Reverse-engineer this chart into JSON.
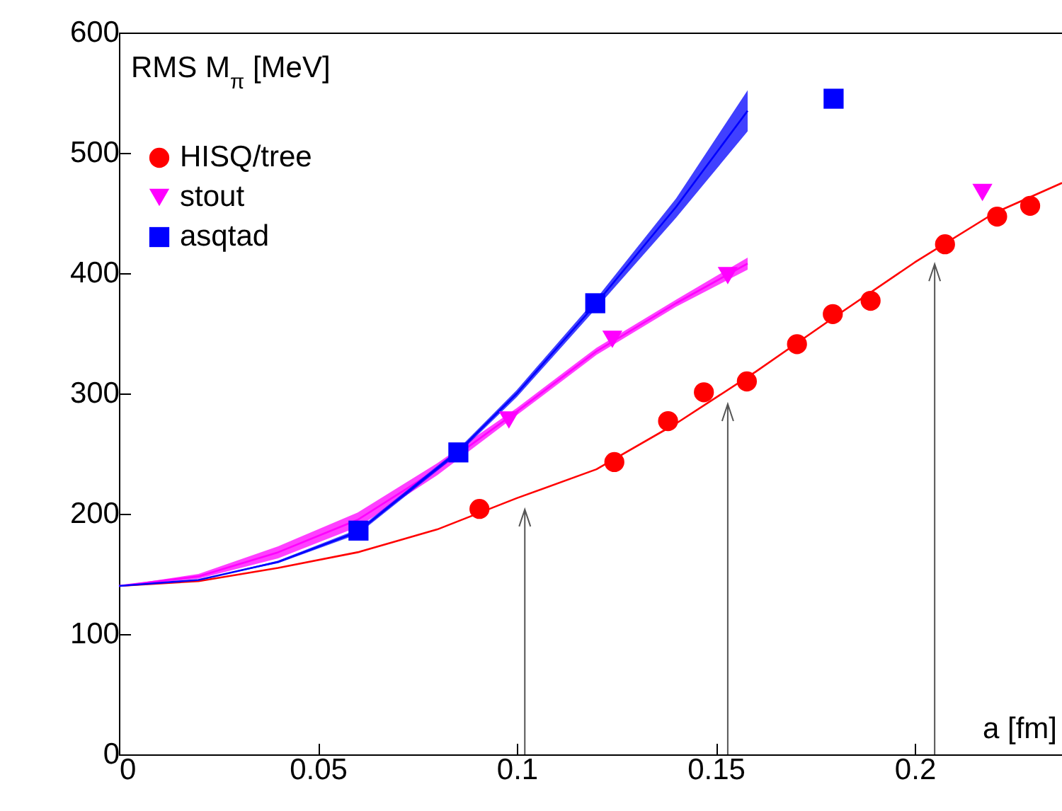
{
  "chart_data": {
    "type": "scatter",
    "xlabel": "a [fm]",
    "ylabel": "RMS M$_{π}$ [MeV]",
    "xlim": [
      0,
      0.237
    ],
    "ylim": [
      0,
      600
    ],
    "xticks": [
      0,
      0.05,
      0.1,
      0.15,
      0.2
    ],
    "yticks": [
      0,
      100,
      200,
      300,
      400,
      500,
      600
    ],
    "grid": false,
    "legend": "top left",
    "series": [
      {
        "type": "line",
        "color": "#ff0000",
        "marker": "none",
        "line_style": "solid",
        "x": [
          0,
          0.02,
          0.04,
          0.06,
          0.08,
          0.1,
          0.12,
          0.14,
          0.16,
          0.18,
          0.2,
          0.22,
          0.237
        ],
        "values": [
          140,
          144,
          155,
          168,
          187,
          213,
          237,
          275,
          318,
          364,
          409,
          450,
          475
        ]
      },
      {
        "type": "line",
        "color": "#ff00ff",
        "marker": "none",
        "line_style": "solid",
        "x": [
          0,
          0.02,
          0.04,
          0.06,
          0.08,
          0.1,
          0.12,
          0.14,
          0.158
        ],
        "values": [
          140,
          148,
          168,
          195,
          237,
          285,
          335,
          375,
          408
        ],
        "lower": [
          140,
          146,
          163,
          189,
          232,
          282,
          332,
          372,
          403
        ],
        "upper": [
          140,
          150,
          173,
          201,
          242,
          288,
          338,
          378,
          413
        ]
      },
      {
        "type": "line",
        "color": "#0000ff",
        "marker": "none",
        "line_style": "solid",
        "x": [
          0,
          0.02,
          0.04,
          0.06,
          0.085,
          0.1,
          0.12,
          0.14,
          0.158
        ],
        "values": [
          140,
          145,
          160,
          185,
          251,
          300,
          375,
          455,
          535
        ],
        "lower": [
          140,
          145,
          159,
          183,
          249,
          297,
          371,
          446,
          518
        ],
        "upper": [
          140,
          145,
          161,
          187,
          253,
          303,
          379,
          462,
          552
        ]
      },
      {
        "name": "HISQ/tree",
        "color": "#ff0000",
        "marker": "circle",
        "x": [
          0.0906,
          0.1245,
          0.138,
          0.147,
          0.1578,
          0.1704,
          0.1794,
          0.1889,
          0.2076,
          0.2207,
          0.229
        ],
        "values": [
          204,
          243,
          277,
          301,
          310,
          341,
          366,
          377,
          424,
          447,
          456
        ]
      },
      {
        "name": "stout",
        "color": "#ff00ff",
        "marker": "triangle",
        "x": [
          0.098,
          0.124,
          0.153,
          0.217
        ],
        "values": [
          278,
          345,
          398,
          467
        ]
      },
      {
        "name": "asqtad",
        "color": "#0000ff",
        "marker": "square",
        "x": [
          0.0602,
          0.0853,
          0.1197,
          0.1796
        ],
        "values": [
          186,
          251,
          375,
          545
        ]
      }
    ],
    "ref_lines": [
      {
        "axis": "x",
        "value": 0.102,
        "color": "#555555"
      },
      {
        "axis": "x",
        "value": 0.153,
        "color": "#555555"
      },
      {
        "axis": "x",
        "value": 0.205,
        "color": "#555555"
      }
    ]
  }
}
